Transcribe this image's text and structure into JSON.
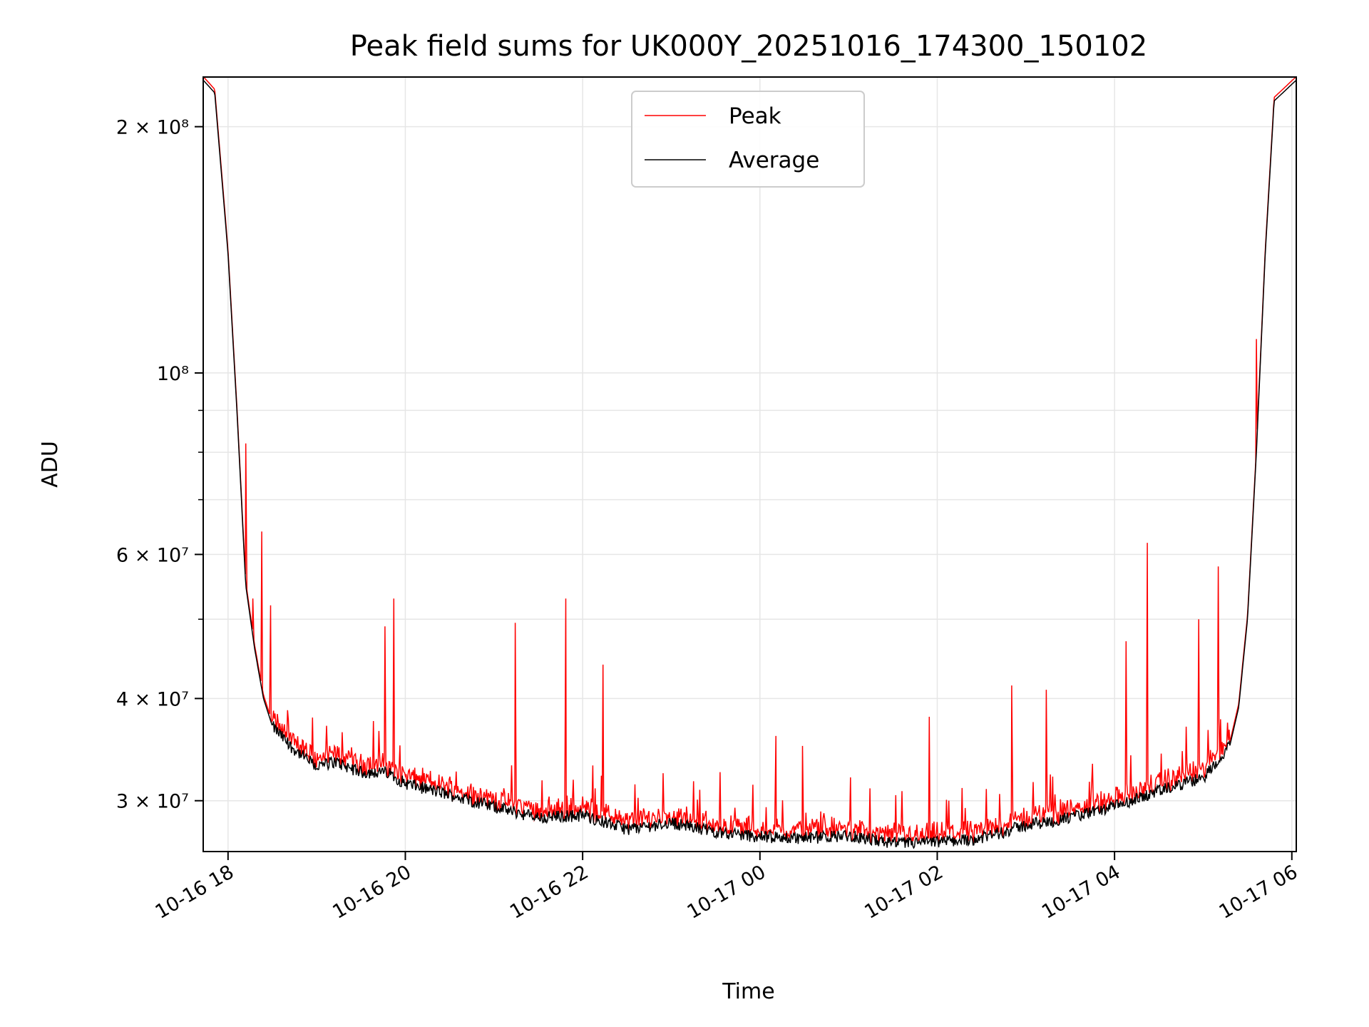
{
  "chart_data": {
    "type": "line",
    "title": "Peak field sums for UK000Y_20251016_174300_150102",
    "xlabel": "Time",
    "ylabel": "ADU",
    "yscale": "log",
    "ylim": [
      26000000,
      230000000
    ],
    "xlim_hours": [
      17.72,
      30.05
    ],
    "x_ticks": [
      {
        "hour": 18,
        "label": "10-16 18"
      },
      {
        "hour": 20,
        "label": "10-16 20"
      },
      {
        "hour": 22,
        "label": "10-16 22"
      },
      {
        "hour": 24,
        "label": "10-17 00"
      },
      {
        "hour": 26,
        "label": "10-17 02"
      },
      {
        "hour": 28,
        "label": "10-17 04"
      },
      {
        "hour": 30,
        "label": "10-17 06"
      }
    ],
    "y_ticks": [
      {
        "value": 30000000,
        "label": "3 × 10⁷"
      },
      {
        "value": 40000000,
        "label": "4 × 10⁷"
      },
      {
        "value": 60000000,
        "label": "6 × 10⁷"
      },
      {
        "value": 100000000,
        "label": "10⁸"
      },
      {
        "value": 200000000,
        "label": "2 × 10⁸"
      }
    ],
    "y_minor_ticks": [
      50000000,
      70000000,
      80000000,
      90000000
    ],
    "grid": true,
    "legend": {
      "position": "top-center",
      "entries": [
        "Peak",
        "Average"
      ]
    },
    "series": [
      {
        "name": "Average",
        "color": "#000000",
        "x": [
          17.72,
          17.85,
          18.0,
          18.1,
          18.2,
          18.3,
          18.4,
          18.5,
          18.7,
          19.0,
          19.2,
          19.5,
          19.8,
          20.0,
          20.5,
          21.0,
          21.5,
          22.0,
          22.5,
          23.0,
          23.5,
          24.0,
          24.5,
          25.0,
          25.5,
          26.0,
          26.5,
          27.0,
          27.5,
          28.0,
          28.5,
          29.0,
          29.3,
          29.4,
          29.5,
          29.6,
          29.7,
          29.8,
          30.05
        ],
        "values": [
          228000000,
          220000000,
          140000000,
          90000000,
          55000000,
          46000000,
          40000000,
          37000000,
          35000000,
          33000000,
          33500000,
          32500000,
          32500000,
          31500000,
          30500000,
          29500000,
          28600000,
          28800000,
          27700000,
          28200000,
          27500000,
          27100000,
          27000000,
          27200000,
          26600000,
          26700000,
          27000000,
          28000000,
          28600000,
          29500000,
          30800000,
          32000000,
          35000000,
          39000000,
          50000000,
          80000000,
          140000000,
          215000000,
          228000000
        ]
      },
      {
        "name": "Peak",
        "color": "#ff0000",
        "spikes": [
          {
            "hour": 18.2,
            "value": 82000000
          },
          {
            "hour": 18.28,
            "value": 53000000
          },
          {
            "hour": 18.38,
            "value": 64000000
          },
          {
            "hour": 18.48,
            "value": 52000000
          },
          {
            "hour": 19.77,
            "value": 49000000
          },
          {
            "hour": 19.87,
            "value": 53000000
          },
          {
            "hour": 21.24,
            "value": 49500000
          },
          {
            "hour": 21.81,
            "value": 53000000
          },
          {
            "hour": 22.23,
            "value": 44000000
          },
          {
            "hour": 24.18,
            "value": 36000000
          },
          {
            "hour": 24.48,
            "value": 35000000
          },
          {
            "hour": 25.91,
            "value": 38000000
          },
          {
            "hour": 26.84,
            "value": 41500000
          },
          {
            "hour": 27.23,
            "value": 41000000
          },
          {
            "hour": 28.37,
            "value": 62000000
          },
          {
            "hour": 28.13,
            "value": 47000000
          },
          {
            "hour": 28.95,
            "value": 50000000
          },
          {
            "hour": 29.17,
            "value": 58000000
          },
          {
            "hour": 29.6,
            "value": 110000000
          }
        ]
      }
    ]
  }
}
